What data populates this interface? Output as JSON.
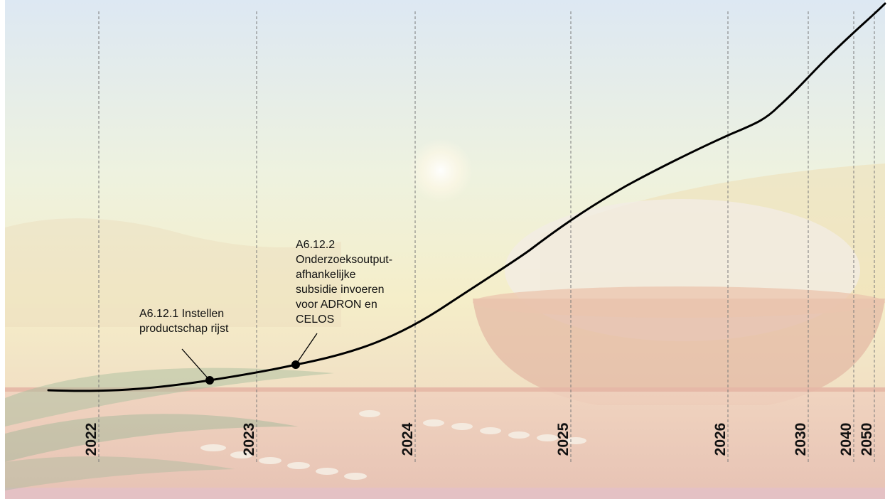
{
  "colors": {
    "line": "#000000",
    "gridline": "#7a7a7a",
    "sky_top": "#dfe9f2",
    "sky_bottom": "#f3ecc6",
    "table": "#e9c7b4"
  },
  "timeline": {
    "years": [
      "2022",
      "2023",
      "2024",
      "2025",
      "2026",
      "2030",
      "2040",
      "2050"
    ]
  },
  "milestones": [
    {
      "id": "A6.12.1",
      "lines": [
        "A6.12.1 Instellen",
        "productschap rijst"
      ]
    },
    {
      "id": "A6.12.2",
      "lines": [
        "A6.12.2",
        "Onderzoeksoutput-",
        "afhankelijke",
        "subsidie invoeren",
        "voor ADRON en",
        "CELOS"
      ]
    }
  ]
}
